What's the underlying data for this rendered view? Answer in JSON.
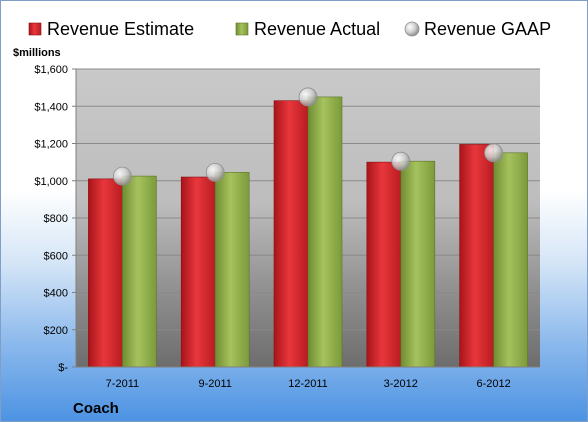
{
  "chart_data": {
    "type": "bar",
    "unit_label": "$millions",
    "company": "Coach",
    "categories": [
      "7-2011",
      "9-2011",
      "12-2011",
      "3-2012",
      "6-2012"
    ],
    "series": [
      {
        "name": "Revenue Estimate",
        "kind": "bar",
        "color": "#d9262b",
        "values": [
          1010,
          1020,
          1430,
          1100,
          1195
        ]
      },
      {
        "name": "Revenue Actual",
        "kind": "bar",
        "color": "#8fae4a",
        "values": [
          1025,
          1045,
          1450,
          1105,
          1150
        ]
      },
      {
        "name": "Revenue GAAP",
        "kind": "marker",
        "color": "#c8c8c8",
        "values": [
          1025,
          1045,
          1450,
          1105,
          1150
        ]
      }
    ],
    "ylim": [
      0,
      1600
    ],
    "y_ticks": [
      0,
      200,
      400,
      600,
      800,
      1000,
      1200,
      1400,
      1600
    ],
    "y_tick_labels": [
      "$-",
      "$200",
      "$400",
      "$600",
      "$800",
      "$1,000",
      "$1,200",
      "$1,400",
      "$1,600"
    ],
    "grid": true,
    "legend_position": "top"
  }
}
